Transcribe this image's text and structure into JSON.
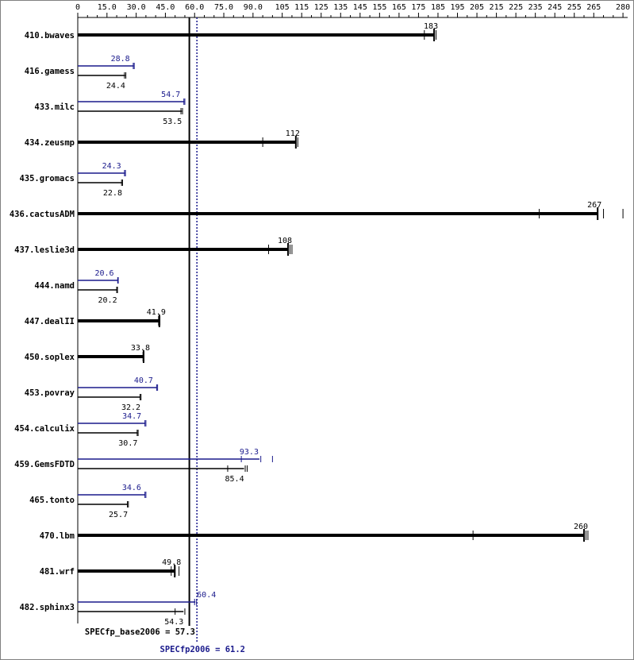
{
  "chart_data": {
    "type": "bar",
    "orientation": "horizontal",
    "xlim": [
      0,
      282
    ],
    "x_ticks": [
      "0",
      "15.0",
      "30.0",
      "45.0",
      "60.0",
      "75.0",
      "90.0",
      "105",
      "115",
      "125",
      "135",
      "145",
      "155",
      "165",
      "175",
      "185",
      "195",
      "205",
      "215",
      "225",
      "235",
      "245",
      "255",
      "265",
      "280"
    ],
    "x_tick_values": [
      0,
      15,
      30,
      45,
      60,
      75,
      90,
      105,
      115,
      125,
      135,
      145,
      155,
      165,
      175,
      185,
      195,
      205,
      215,
      225,
      235,
      245,
      255,
      265,
      280
    ],
    "x_minor_ticks": [
      5,
      10,
      20,
      25,
      35,
      40,
      50,
      55,
      65,
      70,
      80,
      85,
      95,
      100,
      110,
      120,
      130,
      140,
      150,
      160,
      170,
      180,
      190,
      200,
      210,
      220,
      230,
      240,
      250,
      260,
      270,
      275
    ],
    "benchmarks": [
      {
        "name": "410.bwaves",
        "base": 183,
        "base_label": "183",
        "base_runs": [
          178,
          184
        ],
        "peak": null
      },
      {
        "name": "416.gamess",
        "base": 24.4,
        "base_label": "24.4",
        "base_runs": [
          24.0,
          24.7
        ],
        "peak": 28.8,
        "peak_label": "28.8",
        "peak_runs": [
          28.5,
          29.0
        ]
      },
      {
        "name": "433.milc",
        "base": 53.5,
        "base_label": "53.5",
        "base_runs": [
          53.0,
          53.8
        ],
        "peak": 54.7,
        "peak_label": "54.7",
        "peak_runs": [
          54.5,
          55.0
        ]
      },
      {
        "name": "434.zeusmp",
        "base": 112,
        "base_label": "112",
        "base_runs": [
          95,
          113
        ],
        "peak": null
      },
      {
        "name": "435.gromacs",
        "base": 22.8,
        "base_label": "22.8",
        "base_runs": [
          22.5,
          23.0
        ],
        "peak": 24.3,
        "peak_label": "24.3",
        "peak_runs": [
          24.0,
          24.5
        ]
      },
      {
        "name": "436.cactusADM",
        "base": 267,
        "base_label": "267",
        "base_runs": [
          237,
          270,
          280
        ],
        "peak": null
      },
      {
        "name": "437.leslie3d",
        "base": 108,
        "base_label": "108",
        "base_runs": [
          98,
          109,
          110
        ],
        "peak": null
      },
      {
        "name": "444.namd",
        "base": 20.2,
        "base_label": "20.2",
        "base_runs": [
          20.0,
          20.4
        ],
        "peak": 20.6,
        "peak_label": "20.6",
        "peak_runs": [
          20.5,
          20.8
        ]
      },
      {
        "name": "447.dealII",
        "base": 41.9,
        "base_label": "41.9",
        "base_runs": [
          41.5,
          42.2
        ],
        "peak": null
      },
      {
        "name": "450.soplex",
        "base": 33.8,
        "base_label": "33.8",
        "base_runs": [
          33.5,
          34.0
        ],
        "peak": null
      },
      {
        "name": "453.povray",
        "base": 32.2,
        "base_label": "32.2",
        "base_runs": [
          32.0,
          32.5
        ],
        "peak": 40.7,
        "peak_label": "40.7",
        "peak_runs": [
          40.5,
          41.0
        ]
      },
      {
        "name": "454.calculix",
        "base": 30.7,
        "base_label": "30.7",
        "base_runs": [
          30.5,
          31.0
        ],
        "peak": 34.7,
        "peak_label": "34.7",
        "peak_runs": [
          34.5,
          35.0
        ]
      },
      {
        "name": "459.GemsFDTD",
        "base": 85.4,
        "base_label": "85.4",
        "base_runs": [
          77,
          86,
          87
        ],
        "peak": 93.3,
        "peak_label": "93.3",
        "peak_runs": [
          84,
          94,
          100
        ]
      },
      {
        "name": "465.tonto",
        "base": 25.7,
        "base_label": "25.7",
        "base_runs": [
          25.5,
          26.0
        ],
        "peak": 34.6,
        "peak_label": "34.6",
        "peak_runs": [
          34.5,
          35.0
        ]
      },
      {
        "name": "470.lbm",
        "base": 260,
        "base_label": "260",
        "base_runs": [
          203,
          261,
          262
        ],
        "peak": null
      },
      {
        "name": "481.wrf",
        "base": 49.8,
        "base_label": "49.8",
        "base_runs": [
          48,
          50,
          52
        ],
        "peak": null
      },
      {
        "name": "482.sphinx3",
        "base": 54.3,
        "base_label": "54.3",
        "base_runs": [
          50,
          55
        ],
        "peak": 60.4,
        "peak_label": "60.4",
        "peak_runs": [
          60.0,
          61.0
        ]
      }
    ],
    "reference_lines": [
      {
        "name": "base",
        "value": 57.3,
        "label": "SPECfp_base2006 = 57.3",
        "color": "#000000",
        "style": "solid"
      },
      {
        "name": "peak",
        "value": 61.2,
        "label": "SPECfp2006 = 61.2",
        "color": "#1a1a8c",
        "style": "dotted"
      }
    ],
    "colors": {
      "base": "#000000",
      "peak": "#1a1a8c",
      "frame": "#808080"
    }
  }
}
